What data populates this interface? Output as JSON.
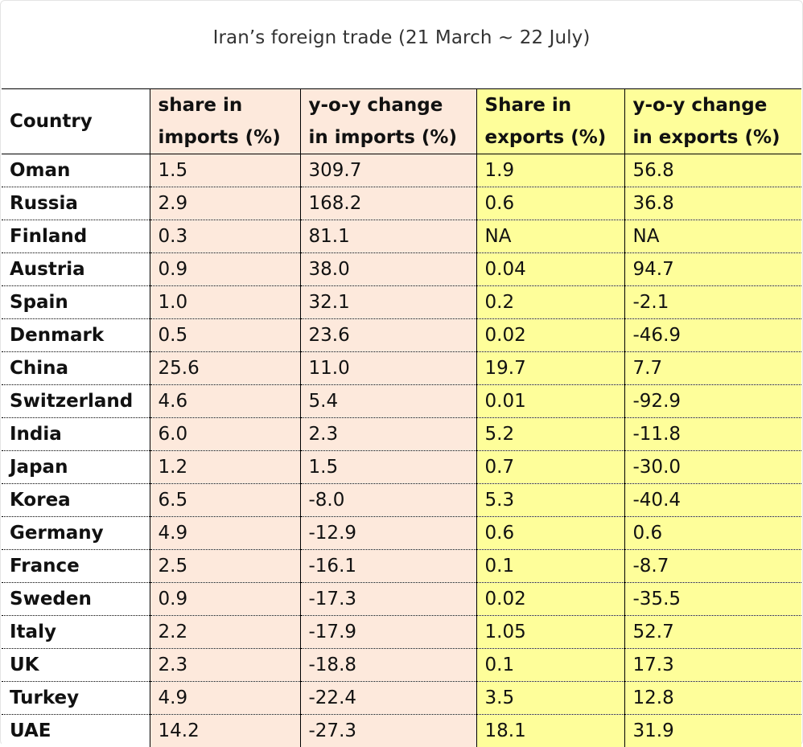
{
  "title": "Iran’s foreign trade (21 March ~ 22 July)",
  "colors": {
    "imports_fill": "#fde9dc",
    "exports_fill": "#fefe9a"
  },
  "headers": {
    "country": "Country",
    "share_imports": [
      "share in",
      "imports (%)"
    ],
    "yoy_imports": [
      "y-o-y change",
      "in imports (%)"
    ],
    "share_exports": [
      "Share in",
      "exports (%)"
    ],
    "yoy_exports": [
      "y-o-y change",
      "in exports (%)"
    ]
  },
  "rows": [
    {
      "country": "Oman",
      "share_imports": "1.5",
      "yoy_imports": "309.7",
      "share_exports": "1.9",
      "yoy_exports": "56.8"
    },
    {
      "country": "Russia",
      "share_imports": "2.9",
      "yoy_imports": "168.2",
      "share_exports": "0.6",
      "yoy_exports": "36.8"
    },
    {
      "country": "Finland",
      "share_imports": "0.3",
      "yoy_imports": "81.1",
      "share_exports": "NA",
      "yoy_exports": "NA"
    },
    {
      "country": "Austria",
      "share_imports": "0.9",
      "yoy_imports": "38.0",
      "share_exports": "0.04",
      "yoy_exports": "94.7"
    },
    {
      "country": "Spain",
      "share_imports": "1.0",
      "yoy_imports": "32.1",
      "share_exports": "0.2",
      "yoy_exports": "-2.1"
    },
    {
      "country": "Denmark",
      "share_imports": "0.5",
      "yoy_imports": "23.6",
      "share_exports": "0.02",
      "yoy_exports": "-46.9"
    },
    {
      "country": "China",
      "share_imports": "25.6",
      "yoy_imports": "11.0",
      "share_exports": "19.7",
      "yoy_exports": "7.7"
    },
    {
      "country": "Switzerland",
      "share_imports": "4.6",
      "yoy_imports": "5.4",
      "share_exports": "0.01",
      "yoy_exports": "-92.9"
    },
    {
      "country": "India",
      "share_imports": "6.0",
      "yoy_imports": "2.3",
      "share_exports": "5.2",
      "yoy_exports": "-11.8"
    },
    {
      "country": "Japan",
      "share_imports": "1.2",
      "yoy_imports": "1.5",
      "share_exports": "0.7",
      "yoy_exports": "-30.0"
    },
    {
      "country": "Korea",
      "share_imports": "6.5",
      "yoy_imports": "-8.0",
      "share_exports": "5.3",
      "yoy_exports": "-40.4"
    },
    {
      "country": "Germany",
      "share_imports": "4.9",
      "yoy_imports": "-12.9",
      "share_exports": "0.6",
      "yoy_exports": "0.6"
    },
    {
      "country": "France",
      "share_imports": "2.5",
      "yoy_imports": "-16.1",
      "share_exports": "0.1",
      "yoy_exports": "-8.7"
    },
    {
      "country": "Sweden",
      "share_imports": "0.9",
      "yoy_imports": "-17.3",
      "share_exports": "0.02",
      "yoy_exports": "-35.5"
    },
    {
      "country": "Italy",
      "share_imports": "2.2",
      "yoy_imports": "-17.9",
      "share_exports": "1.05",
      "yoy_exports": "52.7"
    },
    {
      "country": "UK",
      "share_imports": "2.3",
      "yoy_imports": "-18.8",
      "share_exports": "0.1",
      "yoy_exports": "17.3"
    },
    {
      "country": "Turkey",
      "share_imports": "4.9",
      "yoy_imports": "-22.4",
      "share_exports": "3.5",
      "yoy_exports": "12.8"
    },
    {
      "country": "UAE",
      "share_imports": "14.2",
      "yoy_imports": "-27.3",
      "share_exports": "18.1",
      "yoy_exports": "31.9"
    }
  ]
}
